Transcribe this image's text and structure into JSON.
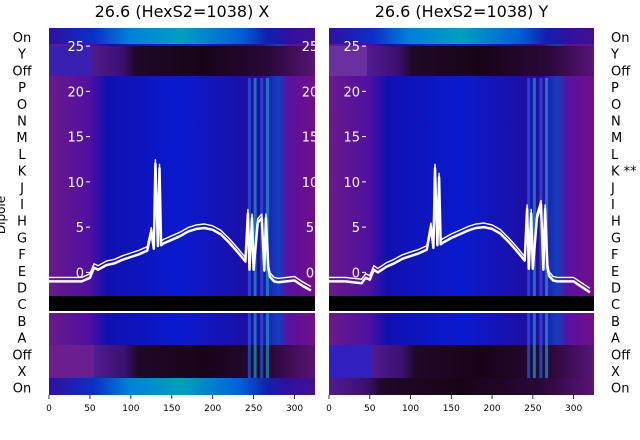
{
  "chart_data": [
    {
      "type": "heatmap",
      "title": "26.6 (HexS2=1038) X",
      "ylabel": "Dipole",
      "x_ticks": [
        0,
        50,
        100,
        150,
        200,
        250,
        300
      ],
      "xlim": [
        0,
        325
      ],
      "inset_y_ticks": [
        0,
        5,
        10,
        15,
        20,
        25
      ],
      "inset_ylim": [
        -2.5,
        27
      ],
      "rows_top_to_bottom": [
        "On",
        "Y",
        "Off",
        "P",
        "O",
        "N",
        "M",
        "L",
        "K",
        "J",
        "I",
        "H",
        "G",
        "F",
        "E",
        "D",
        "C",
        "B",
        "A",
        "Off",
        "X",
        "On"
      ],
      "overlay_series": {
        "x": [
          0,
          20,
          40,
          45,
          50,
          55,
          60,
          70,
          80,
          90,
          100,
          110,
          120,
          125,
          128,
          130,
          133,
          135,
          137,
          140,
          150,
          160,
          170,
          180,
          190,
          200,
          210,
          220,
          230,
          240,
          243,
          245,
          248,
          250,
          255,
          260,
          263,
          265,
          268,
          270,
          275,
          280,
          290,
          300,
          310,
          320
        ],
        "y": [
          -1,
          -1,
          -1,
          -0.8,
          -0.6,
          0.5,
          0.3,
          0.8,
          1.0,
          1.4,
          1.7,
          2.0,
          2.4,
          4.5,
          2.6,
          12.0,
          2.9,
          11.5,
          3.0,
          3.2,
          3.6,
          4.0,
          4.5,
          4.8,
          4.9,
          4.7,
          4.2,
          3.3,
          2.3,
          1.2,
          6.5,
          0.3,
          6.0,
          0.3,
          5.5,
          6.0,
          0.2,
          6.0,
          0.5,
          -0.5,
          -1.0,
          -1.1,
          -1.0,
          -0.9,
          -1.5,
          -2.0
        ]
      }
    },
    {
      "type": "heatmap",
      "title": "26.6 (HexS2=1038) Y",
      "ylabel": "",
      "x_ticks": [
        0,
        50,
        100,
        150,
        200,
        250,
        300
      ],
      "xlim": [
        0,
        325
      ],
      "inset_y_ticks": [
        0,
        5,
        10,
        15,
        20,
        25
      ],
      "inset_ylim": [
        -2.5,
        27
      ],
      "rows_top_to_bottom": [
        "On",
        "Y",
        "Off",
        "P",
        "O",
        "N",
        "M",
        "L",
        "K **",
        "J",
        "I",
        "H",
        "G",
        "F",
        "E",
        "D",
        "C",
        "B",
        "A",
        "Off",
        "X",
        "On"
      ],
      "overlay_series": {
        "x": [
          0,
          20,
          40,
          45,
          50,
          55,
          60,
          70,
          80,
          90,
          100,
          110,
          120,
          125,
          128,
          130,
          133,
          135,
          137,
          140,
          150,
          160,
          170,
          180,
          190,
          200,
          210,
          220,
          230,
          240,
          243,
          245,
          248,
          250,
          255,
          260,
          263,
          265,
          268,
          270,
          275,
          280,
          290,
          300,
          310,
          320
        ],
        "y": [
          -1,
          -1,
          -1.2,
          -0.6,
          -0.8,
          0.3,
          0.0,
          0.6,
          1.0,
          1.5,
          1.8,
          2.1,
          2.5,
          5.0,
          2.7,
          11.5,
          3.0,
          10.5,
          3.1,
          3.3,
          3.8,
          4.2,
          4.6,
          4.9,
          5.0,
          4.8,
          4.3,
          3.4,
          2.4,
          1.3,
          7.0,
          0.4,
          6.5,
          0.4,
          6.0,
          7.5,
          0.3,
          7.0,
          0.5,
          -0.4,
          -0.9,
          -1.0,
          -1.0,
          -1.0,
          -1.6,
          -2.2
        ]
      }
    }
  ]
}
